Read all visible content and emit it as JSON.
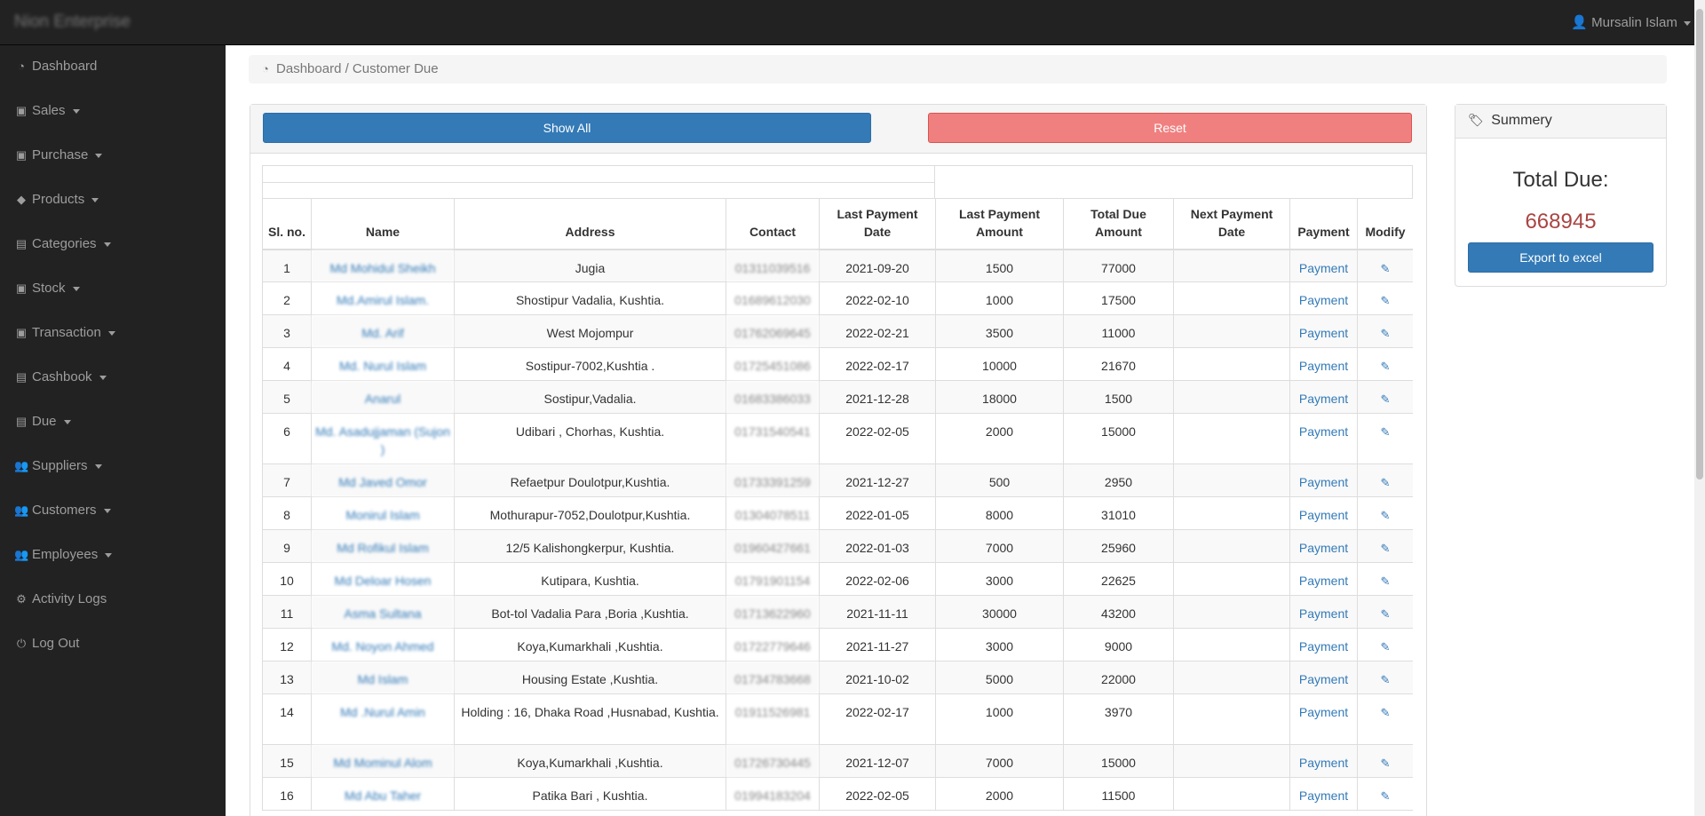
{
  "navbar": {
    "brand": "Nion Enterprise",
    "user": "Mursalin Islam"
  },
  "sidebar": {
    "items": [
      {
        "label": "Dashboard",
        "icon": "dashboard-icon",
        "caret": false
      },
      {
        "label": "Sales",
        "icon": "money-icon",
        "caret": true
      },
      {
        "label": "Purchase",
        "icon": "money-icon",
        "caret": true
      },
      {
        "label": "Products",
        "icon": "tag-icon",
        "caret": true
      },
      {
        "label": "Categories",
        "icon": "book-icon",
        "caret": true
      },
      {
        "label": "Stock",
        "icon": "money-icon",
        "caret": true
      },
      {
        "label": "Transaction",
        "icon": "money-icon",
        "caret": true
      },
      {
        "label": "Cashbook",
        "icon": "book-icon",
        "caret": true
      },
      {
        "label": "Due",
        "icon": "book-icon",
        "caret": true
      },
      {
        "label": "Suppliers",
        "icon": "users-icon",
        "caret": true
      },
      {
        "label": "Customers",
        "icon": "users-icon",
        "caret": true
      },
      {
        "label": "Employees",
        "icon": "users-icon",
        "caret": true
      },
      {
        "label": "Activity Logs",
        "icon": "gear-icon",
        "caret": false
      },
      {
        "label": "Log Out",
        "icon": "power-icon",
        "caret": false
      }
    ]
  },
  "breadcrumb": {
    "text": "Dashboard / Customer Due"
  },
  "toolbar": {
    "show_all": "Show All",
    "reset": "Reset"
  },
  "table": {
    "headers": [
      "Sl. no.",
      "Name",
      "Address",
      "Contact",
      "Last Payment Date",
      "Last Payment Amount",
      "Total Due Amount",
      "Next Payment Date",
      "Payment",
      "Modify"
    ],
    "payment_label": "Payment",
    "rows": [
      {
        "sl": "1",
        "name": "Md Mohidul Sheikh",
        "address": "Jugia",
        "contact": "01311039516",
        "last_date": "2021-09-20",
        "last_amount": "1500",
        "total_due": "77000",
        "next_date": ""
      },
      {
        "sl": "2",
        "name": "Md.Amirul Islam.",
        "address": "Shostipur Vadalia, Kushtia.",
        "contact": "01689612030",
        "last_date": "2022-02-10",
        "last_amount": "1000",
        "total_due": "17500",
        "next_date": ""
      },
      {
        "sl": "3",
        "name": "Md. Arif",
        "address": "West Mojompur",
        "contact": "01762069645",
        "last_date": "2022-02-21",
        "last_amount": "3500",
        "total_due": "11000",
        "next_date": ""
      },
      {
        "sl": "4",
        "name": "Md. Nurul Islam",
        "address": "Sostipur-7002,Kushtia .",
        "contact": "01725451086",
        "last_date": "2022-02-17",
        "last_amount": "10000",
        "total_due": "21670",
        "next_date": ""
      },
      {
        "sl": "5",
        "name": "Anarul",
        "address": "Sostipur,Vadalia.",
        "contact": "01683386033",
        "last_date": "2021-12-28",
        "last_amount": "18000",
        "total_due": "1500",
        "next_date": ""
      },
      {
        "sl": "6",
        "name": "Md. Asadujjaman (Sujon )",
        "address": "Udibari , Chorhas, Kushtia.",
        "contact": "01731540541",
        "last_date": "2022-02-05",
        "last_amount": "2000",
        "total_due": "15000",
        "next_date": ""
      },
      {
        "sl": "7",
        "name": "Md Javed Omor",
        "address": "Refaetpur Doulotpur,Kushtia.",
        "contact": "01733391259",
        "last_date": "2021-12-27",
        "last_amount": "500",
        "total_due": "2950",
        "next_date": ""
      },
      {
        "sl": "8",
        "name": "Monirul Islam",
        "address": "Mothurapur-7052,Doulotpur,Kushtia.",
        "contact": "01304078511",
        "last_date": "2022-01-05",
        "last_amount": "8000",
        "total_due": "31010",
        "next_date": ""
      },
      {
        "sl": "9",
        "name": "Md Rofikul Islam",
        "address": "12/5 Kalishongkerpur, Kushtia.",
        "contact": "01960427661",
        "last_date": "2022-01-03",
        "last_amount": "7000",
        "total_due": "25960",
        "next_date": ""
      },
      {
        "sl": "10",
        "name": "Md Deloar Hosen",
        "address": "Kutipara, Kushtia.",
        "contact": "01791901154",
        "last_date": "2022-02-06",
        "last_amount": "3000",
        "total_due": "22625",
        "next_date": ""
      },
      {
        "sl": "11",
        "name": "Asma Sultana",
        "address": "Bot-tol Vadalia Para ,Boria ,Kushtia.",
        "contact": "01713622960",
        "last_date": "2021-11-11",
        "last_amount": "30000",
        "total_due": "43200",
        "next_date": ""
      },
      {
        "sl": "12",
        "name": "Md. Noyon Ahmed",
        "address": "Koya,Kumarkhali ,Kushtia.",
        "contact": "01722779646",
        "last_date": "2021-11-27",
        "last_amount": "3000",
        "total_due": "9000",
        "next_date": ""
      },
      {
        "sl": "13",
        "name": "Md Islam",
        "address": "Housing Estate ,Kushtia.",
        "contact": "01734783668",
        "last_date": "2021-10-02",
        "last_amount": "5000",
        "total_due": "22000",
        "next_date": ""
      },
      {
        "sl": "14",
        "name": "Md .Nurul Amin",
        "address": "Holding : 16, Dhaka Road ,Husnabad, Kushtia.",
        "contact": "01911526981",
        "last_date": "2022-02-17",
        "last_amount": "1000",
        "total_due": "3970",
        "next_date": ""
      },
      {
        "sl": "15",
        "name": "Md Mominul Alom",
        "address": "Koya,Kumarkhali ,Kushtia.",
        "contact": "01726730445",
        "last_date": "2021-12-07",
        "last_amount": "7000",
        "total_due": "15000",
        "next_date": ""
      },
      {
        "sl": "16",
        "name": "Md Abu Taher",
        "address": "Patika Bari , Kushtia.",
        "contact": "01994183204",
        "last_date": "2022-02-05",
        "last_amount": "2000",
        "total_due": "11500",
        "next_date": ""
      }
    ]
  },
  "summary": {
    "title": "Summery",
    "total_label": "Total Due:",
    "total_value": "668945",
    "export_label": "Export to excel"
  }
}
